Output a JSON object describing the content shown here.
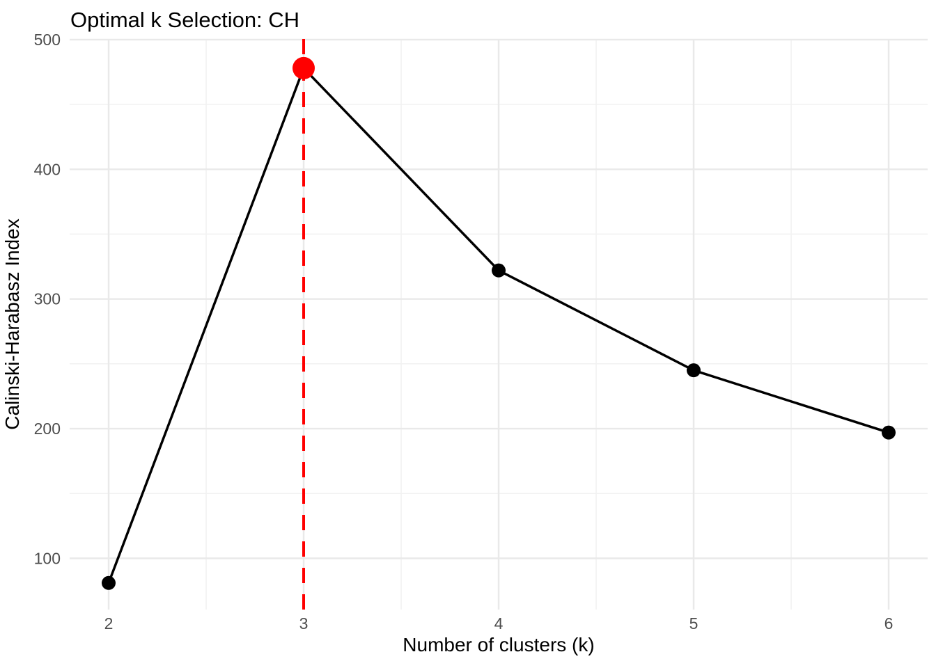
{
  "chart_data": {
    "type": "line",
    "title": "Optimal k Selection: CH",
    "xlabel": "Number of clusters (k)",
    "ylabel": "Calinski-Harabasz Index",
    "x": [
      2,
      3,
      4,
      5,
      6
    ],
    "series": [
      {
        "name": "Calinski-Harabasz Index",
        "values": [
          81,
          478,
          322,
          245,
          197
        ]
      }
    ],
    "optimal_k": 3,
    "optimal_value": 478,
    "vline": {
      "x": 3,
      "style": "dashed",
      "color": "#FF0000"
    },
    "highlight_point": {
      "x": 3,
      "y": 478,
      "color": "#FF0000"
    },
    "xlim": [
      1.8,
      6.2
    ],
    "ylim": [
      60.5,
      500.5
    ],
    "xticks": [
      2,
      3,
      4,
      5,
      6
    ],
    "yticks": [
      100,
      200,
      300,
      400,
      500
    ],
    "xticks_minor": [
      2.5,
      3.5,
      4.5,
      5.5
    ],
    "yticks_minor": [
      150,
      250,
      350,
      450
    ],
    "grid": "major-and-minor",
    "legend": "none"
  },
  "colors": {
    "background": "#FFFFFF",
    "line": "#000000",
    "point": "#000000",
    "highlight": "#FF0000",
    "grid_major": "#E9E9E9",
    "grid_minor": "#F2F2F2",
    "tick_label": "#4D4D4D",
    "title": "#000000",
    "axis_title": "#000000"
  }
}
